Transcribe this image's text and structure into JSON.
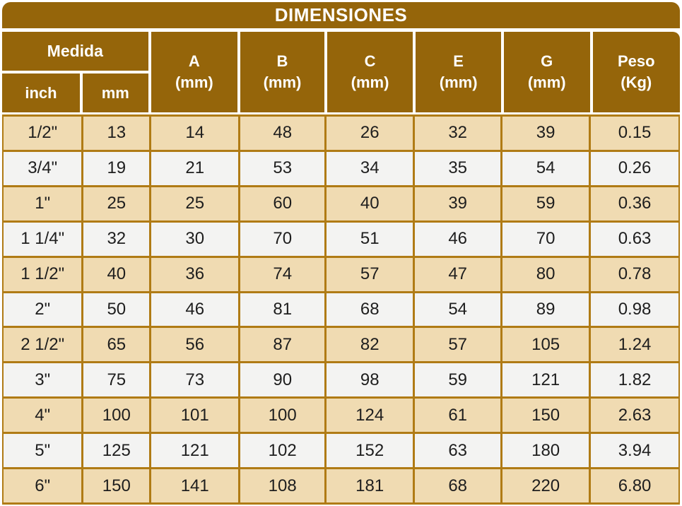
{
  "title": "DIMENSIONES",
  "header": {
    "medida": "Medida",
    "inch": "inch",
    "mm": "mm",
    "columns": [
      {
        "label": "A",
        "unit": "(mm)"
      },
      {
        "label": "B",
        "unit": "(mm)"
      },
      {
        "label": "C",
        "unit": "(mm)"
      },
      {
        "label": "E",
        "unit": "(mm)"
      },
      {
        "label": "G",
        "unit": "(mm)"
      },
      {
        "label": "Peso",
        "unit": "(Kg)"
      }
    ]
  },
  "rows": [
    [
      "1/2\"",
      "13",
      "14",
      "48",
      "26",
      "32",
      "39",
      "0.15"
    ],
    [
      "3/4\"",
      "19",
      "21",
      "53",
      "34",
      "35",
      "54",
      "0.26"
    ],
    [
      "1\"",
      "25",
      "25",
      "60",
      "40",
      "39",
      "59",
      "0.36"
    ],
    [
      "1 1/4\"",
      "32",
      "30",
      "70",
      "51",
      "46",
      "70",
      "0.63"
    ],
    [
      "1 1/2\"",
      "40",
      "36",
      "74",
      "57",
      "47",
      "80",
      "0.78"
    ],
    [
      "2\"",
      "50",
      "46",
      "81",
      "68",
      "54",
      "89",
      "0.98"
    ],
    [
      "2 1/2\"",
      "65",
      "56",
      "87",
      "82",
      "57",
      "105",
      "1.24"
    ],
    [
      "3\"",
      "75",
      "73",
      "90",
      "98",
      "59",
      "121",
      "1.82"
    ],
    [
      "4\"",
      "100",
      "101",
      "100",
      "124",
      "61",
      "150",
      "2.63"
    ],
    [
      "5\"",
      "125",
      "121",
      "102",
      "152",
      "63",
      "180",
      "3.94"
    ],
    [
      "6\"",
      "150",
      "141",
      "108",
      "181",
      "68",
      "220",
      "6.80"
    ]
  ],
  "colors": {
    "header_brown": "#95650A",
    "border_gold": "#B07B15",
    "row_tan": "#F0DBB2",
    "row_light": "#F3F3F2",
    "title_text": "#FFFFFF",
    "cell_text": "#1E1E1E"
  }
}
